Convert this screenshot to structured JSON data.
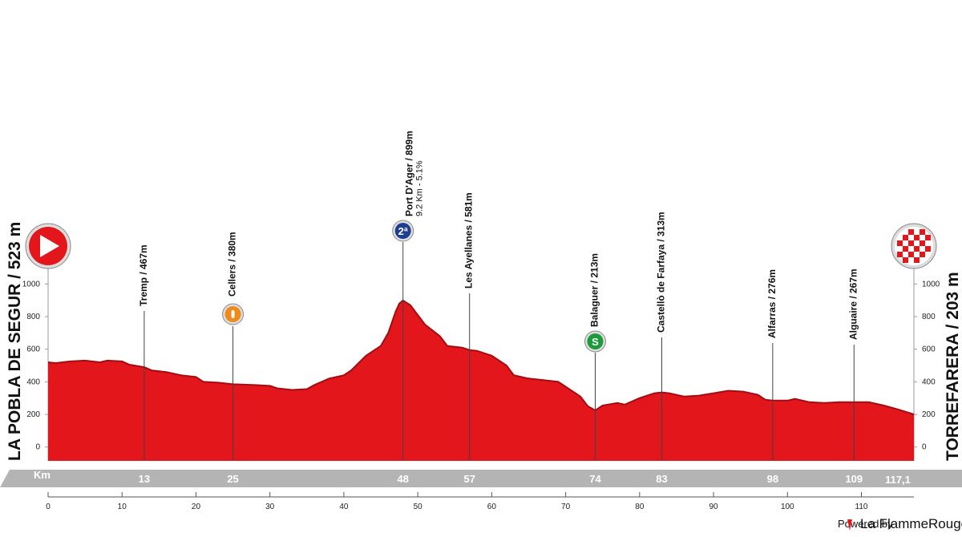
{
  "chart_data": {
    "type": "area",
    "start_label": "LA POBLA DE SEGUR / 523 m",
    "finish_label": "TORREFARERA / 203 m",
    "color": "#e3161b",
    "edge_color": "#a30d12",
    "x": [
      0,
      1,
      3,
      5,
      7,
      8,
      10,
      11,
      13,
      14,
      16,
      18,
      20,
      21,
      23,
      25,
      28,
      30,
      31,
      33,
      35,
      36,
      38,
      40,
      41,
      43,
      45,
      46,
      47,
      47.5,
      48,
      49,
      50,
      51,
      53,
      54,
      56,
      57,
      58,
      60,
      62,
      63,
      65,
      67,
      69,
      70,
      72,
      73,
      74,
      75,
      77,
      78,
      80,
      82,
      83,
      84,
      86,
      88,
      90,
      92,
      94,
      96,
      97,
      98,
      100,
      101,
      103,
      105,
      107,
      109,
      111,
      113,
      115,
      117.1
    ],
    "values": [
      520,
      515,
      525,
      530,
      520,
      530,
      525,
      505,
      490,
      470,
      460,
      440,
      430,
      400,
      395,
      385,
      380,
      375,
      360,
      350,
      355,
      380,
      420,
      440,
      470,
      560,
      620,
      700,
      830,
      880,
      899,
      870,
      810,
      750,
      680,
      620,
      610,
      595,
      590,
      560,
      500,
      440,
      420,
      410,
      400,
      370,
      310,
      250,
      225,
      255,
      270,
      260,
      300,
      330,
      335,
      330,
      310,
      315,
      330,
      345,
      340,
      320,
      290,
      285,
      285,
      295,
      275,
      270,
      275,
      275,
      275,
      255,
      230,
      200
    ],
    "xlim": [
      0,
      117.1
    ],
    "ylim": [
      -85,
      1100
    ],
    "xticks": [
      0,
      10,
      20,
      30,
      40,
      50,
      60,
      70,
      80,
      90,
      100,
      110
    ],
    "yticks": [
      0,
      200,
      400,
      600,
      800,
      1000
    ],
    "km_label": "Km",
    "finish_km": {
      "value": 117.1,
      "label": "117,1"
    },
    "waypoints": [
      {
        "km": 13,
        "label": "Tremp / 467m"
      },
      {
        "km": 25,
        "label": "Cellers / 380m"
      },
      {
        "km": 48,
        "label": "Port D'Ager / 899m",
        "sub": "9.2 Km - 5.1%",
        "icon": "2ª"
      },
      {
        "km": 57,
        "label": "Les Ayellanes / 581m"
      },
      {
        "km": 74,
        "label": "Balaguer / 213m",
        "icon": "S"
      },
      {
        "km": 83,
        "label": "Castellò de Farfaya / 313m"
      },
      {
        "km": 98,
        "label": "Alfarras / 276m"
      },
      {
        "km": 109,
        "label": "Alguaire / 267m"
      }
    ],
    "footer": {
      "powered": "Powered by",
      "brand": "La FlammeRouge"
    }
  }
}
